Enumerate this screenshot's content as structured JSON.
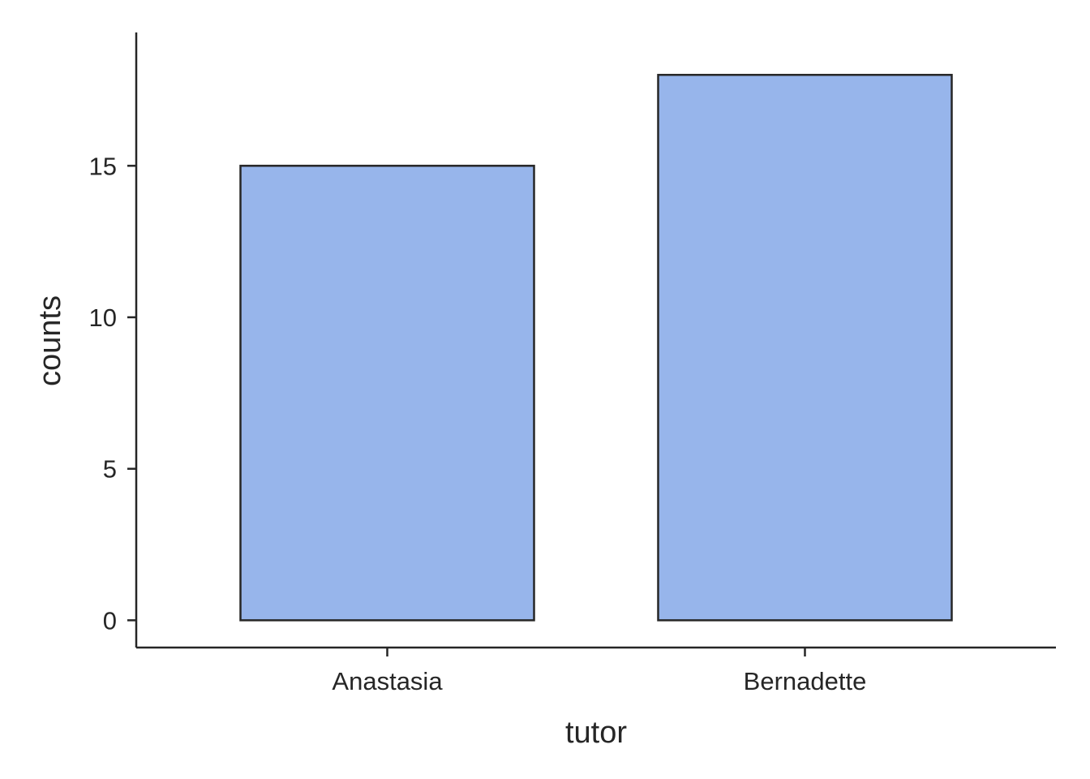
{
  "chart_data": {
    "type": "bar",
    "categories": [
      "Anastasia",
      "Bernadette"
    ],
    "values": [
      15,
      18
    ],
    "title": "",
    "xlabel": "tutor",
    "ylabel": "counts",
    "ylim": [
      -0.9,
      19.4
    ],
    "yticks": [
      0,
      5,
      10,
      15
    ],
    "grid": false,
    "legend": "none",
    "colors": {
      "bar_fill": "#97b5eb",
      "bar_edge": "#262626",
      "axis": "#262626"
    }
  }
}
